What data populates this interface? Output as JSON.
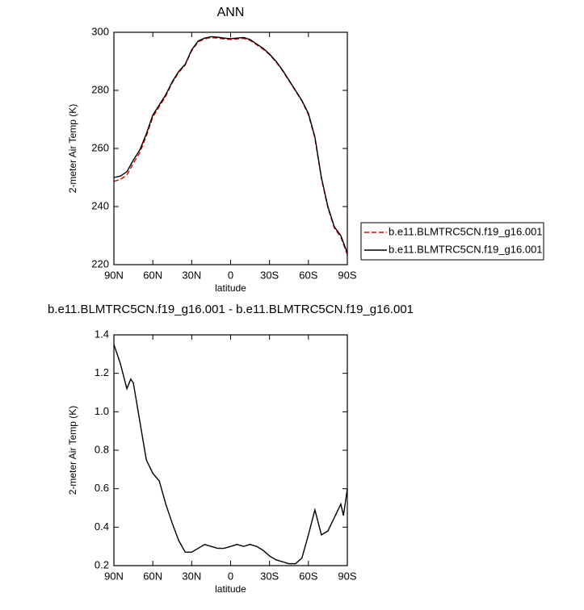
{
  "chart_data": [
    {
      "type": "line",
      "title": "ANN",
      "xlabel": "latitude",
      "ylabel": "2-meter Air Temp (K)",
      "x": [
        90,
        85,
        80,
        75,
        70,
        65,
        60,
        55,
        50,
        45,
        40,
        35,
        30,
        25,
        20,
        15,
        10,
        5,
        0,
        -5,
        -10,
        -15,
        -20,
        -25,
        -30,
        -35,
        -40,
        -45,
        -50,
        -55,
        -60,
        -65,
        -70,
        -75,
        -80,
        -85,
        -90
      ],
      "xlim": [
        90,
        -90
      ],
      "xticks": [
        {
          "value": 90,
          "label": "90N"
        },
        {
          "value": 60,
          "label": "60N"
        },
        {
          "value": 30,
          "label": "30N"
        },
        0,
        {
          "value": -30,
          "label": "30S"
        },
        {
          "value": -60,
          "label": "60S"
        },
        {
          "value": -90,
          "label": "90S"
        }
      ],
      "ylim": [
        220,
        300
      ],
      "yticks": [
        220,
        240,
        260,
        280,
        300
      ],
      "legend": "right",
      "series": [
        {
          "name": "b.e11.BLMTRC5CN.f19_g16.001",
          "color": "#e00000",
          "style": "dashed",
          "values": [
            248.7,
            249.3,
            250.9,
            254.9,
            258.6,
            264.3,
            270.8,
            274.4,
            278.0,
            282.6,
            286.2,
            288.7,
            293.7,
            296.7,
            297.7,
            298.2,
            298.0,
            297.7,
            297.5,
            297.7,
            297.9,
            297.2,
            295.7,
            294.2,
            292.3,
            289.8,
            286.8,
            283.3,
            279.8,
            276.3,
            271.6,
            263.5,
            249.6,
            239.6,
            232.6,
            229.5,
            223.4
          ]
        },
        {
          "name": "b.e11.BLMTRC5CN.f19_g16.001",
          "color": "#000000",
          "style": "solid",
          "values": [
            250,
            250.5,
            252,
            256,
            259.5,
            265,
            271.5,
            275,
            278.5,
            283,
            286.5,
            289,
            294,
            297,
            298,
            298.5,
            298.3,
            298,
            297.8,
            298,
            298.2,
            297.5,
            296,
            294.5,
            292.5,
            290,
            287,
            283.5,
            280,
            276.5,
            272,
            264,
            250,
            240,
            233,
            230,
            224
          ]
        }
      ]
    },
    {
      "type": "line",
      "title": "b.e11.BLMTRC5CN.f19_g16.001 - b.e11.BLMTRC5CN.f19_g16.001",
      "xlabel": "latitude",
      "ylabel": "2-meter Air Temp (K)",
      "x": [
        90,
        85,
        80,
        77,
        75,
        70,
        65,
        60,
        55,
        50,
        45,
        40,
        35,
        30,
        25,
        20,
        15,
        10,
        5,
        0,
        -5,
        -10,
        -15,
        -20,
        -25,
        -30,
        -35,
        -40,
        -45,
        -50,
        -55,
        -60,
        -65,
        -70,
        -75,
        -80,
        -85,
        -87,
        -90
      ],
      "xlim": [
        90,
        -90
      ],
      "xticks": [
        {
          "value": 90,
          "label": "90N"
        },
        {
          "value": 60,
          "label": "60N"
        },
        {
          "value": 30,
          "label": "30N"
        },
        0,
        {
          "value": -30,
          "label": "30S"
        },
        {
          "value": -60,
          "label": "60S"
        },
        {
          "value": -90,
          "label": "90S"
        }
      ],
      "ylim": [
        0.2,
        1.4
      ],
      "yticks": [
        0.2,
        0.4,
        0.6,
        0.8,
        {
          "value": 1,
          "label": "1.0"
        },
        1.2,
        1.4
      ],
      "series": [
        {
          "color": "#000000",
          "style": "solid",
          "values": [
            1.35,
            1.25,
            1.12,
            1.17,
            1.15,
            0.95,
            0.75,
            0.68,
            0.64,
            0.52,
            0.42,
            0.33,
            0.27,
            0.27,
            0.29,
            0.31,
            0.3,
            0.29,
            0.29,
            0.3,
            0.31,
            0.3,
            0.31,
            0.3,
            0.28,
            0.25,
            0.23,
            0.22,
            0.21,
            0.21,
            0.24,
            0.36,
            0.49,
            0.36,
            0.38,
            0.45,
            0.52,
            0.46,
            0.6
          ]
        }
      ]
    }
  ]
}
